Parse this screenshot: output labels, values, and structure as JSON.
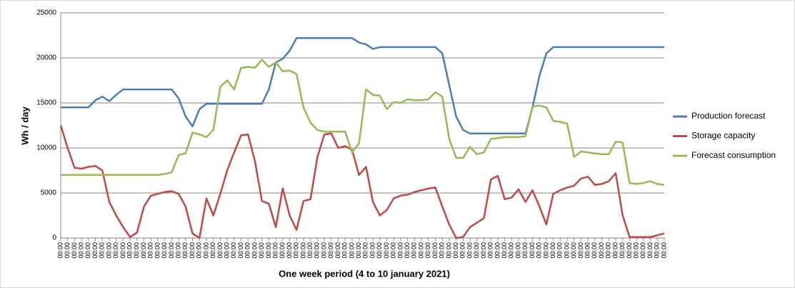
{
  "chart_data": {
    "type": "line",
    "y_label": "Wh / day",
    "x_label": "One week period (4 to 10 january 2021)",
    "categories": [
      "00:00",
      "00:00",
      "00:00",
      "00:00",
      "00:00",
      "00:00",
      "00:00",
      "00:00",
      "00:00",
      "00:00",
      "00:00",
      "00:00",
      "00:00",
      "00:00",
      "00:00",
      "00:00",
      "00:00",
      "00:00",
      "00:00",
      "00:00",
      "00:00",
      "00:00",
      "00:00",
      "00:00",
      "00:00",
      "00:00",
      "00:00",
      "00:00",
      "00:00",
      "00:00",
      "00:00",
      "00:00",
      "00:00",
      "00:00",
      "00:00",
      "00:00",
      "00:00",
      "00:00",
      "00:00",
      "00:00",
      "00:00",
      "00:00",
      "00:00",
      "00:00",
      "00:00",
      "00:00",
      "00:00",
      "00:00",
      "00:00",
      "00:00",
      "00:00",
      "00:00",
      "00:00",
      "00:00",
      "00:00",
      "00:00",
      "00:00",
      "00:00",
      "00:00",
      "00:00",
      "00:00",
      "00:00",
      "00:00",
      "00:00",
      "00:00",
      "00:00",
      "00:00",
      "00:00",
      "00:00",
      "00:00",
      "00:00",
      "00:00",
      "00:00",
      "00:00",
      "00:00",
      "00:00",
      "00:00",
      "00:00",
      "00:00",
      "00:00",
      "00:00",
      "00:00",
      "00:00",
      "00:00",
      "00:00",
      "00:00",
      "00:00",
      "00:00"
    ],
    "series": [
      {
        "name": "Production forecast",
        "color": "#4a7ebb",
        "values": [
          14500,
          14500,
          14500,
          14500,
          14500,
          15300,
          15700,
          15200,
          15900,
          16500,
          16500,
          16500,
          16500,
          16500,
          16500,
          16500,
          16500,
          15500,
          13500,
          12400,
          14300,
          14900,
          14900,
          14900,
          14900,
          14900,
          14900,
          14900,
          14900,
          14900,
          16500,
          19500,
          19900,
          20800,
          22200,
          22200,
          22200,
          22200,
          22200,
          22200,
          22200,
          22200,
          22200,
          21700,
          21500,
          21000,
          21200,
          21200,
          21200,
          21200,
          21200,
          21200,
          21200,
          21200,
          21200,
          20500,
          17000,
          13500,
          12000,
          11600,
          11600,
          11600,
          11600,
          11600,
          11600,
          11600,
          11600,
          11600,
          14500,
          18000,
          20500,
          21200,
          21200,
          21200,
          21200,
          21200,
          21200,
          21200,
          21200,
          21200,
          21200,
          21200,
          21200,
          21200,
          21200,
          21200,
          21200,
          21200
        ]
      },
      {
        "name": "Storage capacity",
        "color": "#be4b48",
        "values": [
          12500,
          10000,
          7800,
          7700,
          7900,
          8000,
          7500,
          4000,
          2500,
          1200,
          100,
          600,
          3500,
          4700,
          4900,
          5100,
          5200,
          4900,
          3500,
          500,
          0,
          4400,
          2500,
          4900,
          7500,
          9500,
          11400,
          11500,
          8500,
          4100,
          3800,
          1200,
          5500,
          2500,
          900,
          4100,
          4300,
          9000,
          11500,
          11600,
          10000,
          10200,
          9800,
          7000,
          7900,
          4000,
          2500,
          3100,
          4400,
          4700,
          4800,
          5100,
          5300,
          5500,
          5600,
          3500,
          1500,
          0,
          100,
          1200,
          1700,
          2200,
          6500,
          6900,
          4300,
          4500,
          5400,
          4000,
          5300,
          3500,
          1500,
          4900,
          5300,
          5600,
          5800,
          6600,
          6800,
          5900,
          6000,
          6300,
          7200,
          2500,
          100,
          100,
          100,
          100,
          300,
          500
        ]
      },
      {
        "name": "Forecast consumption",
        "color": "#98b954",
        "values": [
          7000,
          7000,
          7000,
          7000,
          7000,
          7000,
          7000,
          7000,
          7000,
          7000,
          7000,
          7000,
          7000,
          7000,
          7000,
          7100,
          7300,
          9200,
          9400,
          11700,
          11500,
          11200,
          12000,
          16800,
          17500,
          16500,
          18900,
          19000,
          18900,
          19800,
          19000,
          19500,
          18500,
          18600,
          18200,
          14500,
          12800,
          12000,
          11800,
          11800,
          11800,
          11800,
          9500,
          10500,
          16500,
          15900,
          15800,
          14300,
          15100,
          15000,
          15400,
          15300,
          15300,
          15400,
          16200,
          15700,
          11000,
          8900,
          8900,
          10100,
          9300,
          9500,
          11000,
          11100,
          11200,
          11200,
          11200,
          11300,
          14600,
          14700,
          14500,
          13000,
          12900,
          12700,
          9000,
          9600,
          9500,
          9400,
          9300,
          9300,
          10700,
          10600,
          6100,
          6000,
          6100,
          6300,
          6000,
          5900
        ]
      }
    ],
    "ylim": [
      0,
      25000
    ],
    "yticks": [
      0,
      5000,
      10000,
      15000,
      20000,
      25000
    ],
    "grid": true,
    "legend": "right"
  }
}
